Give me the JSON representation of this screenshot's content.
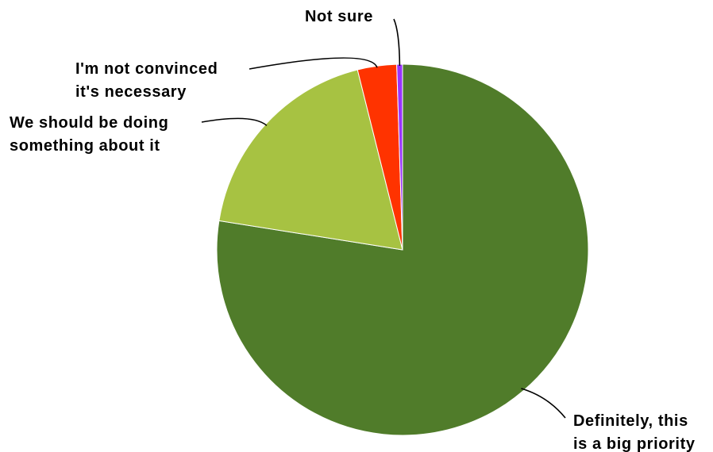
{
  "chart_data": {
    "type": "pie",
    "title": "",
    "slices": [
      {
        "label": "Definitely, this is a big priority",
        "value": 77.5,
        "color": "#507c2a"
      },
      {
        "label": "We should be doing something about it",
        "value": 18.6,
        "color": "#a7c242"
      },
      {
        "label": "I'm not convinced it's necessary",
        "value": 3.4,
        "color": "#ff3300"
      },
      {
        "label": "Not sure",
        "value": 0.5,
        "color": "#9933ff"
      }
    ],
    "label_lines": [
      [
        "Definitely, this",
        "is a big priority"
      ],
      [
        "We should be doing",
        "something about it"
      ],
      [
        "I'm not convinced",
        "it's necessary"
      ],
      [
        "Not sure"
      ]
    ],
    "legend": "none",
    "labels": "outside with leader lines"
  }
}
